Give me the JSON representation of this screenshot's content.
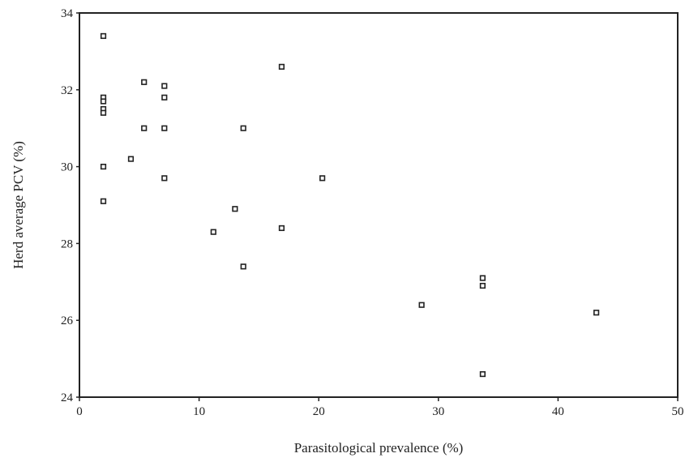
{
  "chart_data": {
    "type": "scatter",
    "title": "",
    "xlabel": "Parasitological prevalence (%)",
    "ylabel": "Herd average PCV (%)",
    "xlim": [
      0,
      50
    ],
    "ylim": [
      24,
      34
    ],
    "x_ticks": [
      0,
      10,
      20,
      30,
      40,
      50
    ],
    "y_ticks": [
      24,
      26,
      28,
      30,
      32,
      34
    ],
    "x_tick_labels": [
      "0",
      "10",
      "20",
      "30",
      "40",
      "50"
    ],
    "y_tick_labels": [
      "24",
      "26",
      "28",
      "30",
      "32",
      "34"
    ],
    "grid": false,
    "legend": "none",
    "marker_color": "#222222",
    "series": [
      {
        "points": [
          {
            "x": 2.0,
            "y": 33.4
          },
          {
            "x": 2.0,
            "y": 31.8
          },
          {
            "x": 2.0,
            "y": 31.7
          },
          {
            "x": 2.0,
            "y": 31.5
          },
          {
            "x": 2.0,
            "y": 31.4
          },
          {
            "x": 2.0,
            "y": 30.0
          },
          {
            "x": 2.0,
            "y": 29.1
          },
          {
            "x": 4.3,
            "y": 30.2
          },
          {
            "x": 5.4,
            "y": 32.2
          },
          {
            "x": 5.4,
            "y": 31.0
          },
          {
            "x": 7.1,
            "y": 32.1
          },
          {
            "x": 7.1,
            "y": 31.8
          },
          {
            "x": 7.1,
            "y": 31.0
          },
          {
            "x": 7.1,
            "y": 29.7
          },
          {
            "x": 11.2,
            "y": 28.3
          },
          {
            "x": 13.0,
            "y": 28.9
          },
          {
            "x": 13.7,
            "y": 31.0
          },
          {
            "x": 13.7,
            "y": 27.4
          },
          {
            "x": 16.9,
            "y": 32.6
          },
          {
            "x": 16.9,
            "y": 28.4
          },
          {
            "x": 20.3,
            "y": 29.7
          },
          {
            "x": 28.6,
            "y": 26.4
          },
          {
            "x": 33.7,
            "y": 27.1
          },
          {
            "x": 33.7,
            "y": 26.9
          },
          {
            "x": 33.7,
            "y": 24.6
          },
          {
            "x": 43.2,
            "y": 26.2
          }
        ]
      }
    ]
  }
}
